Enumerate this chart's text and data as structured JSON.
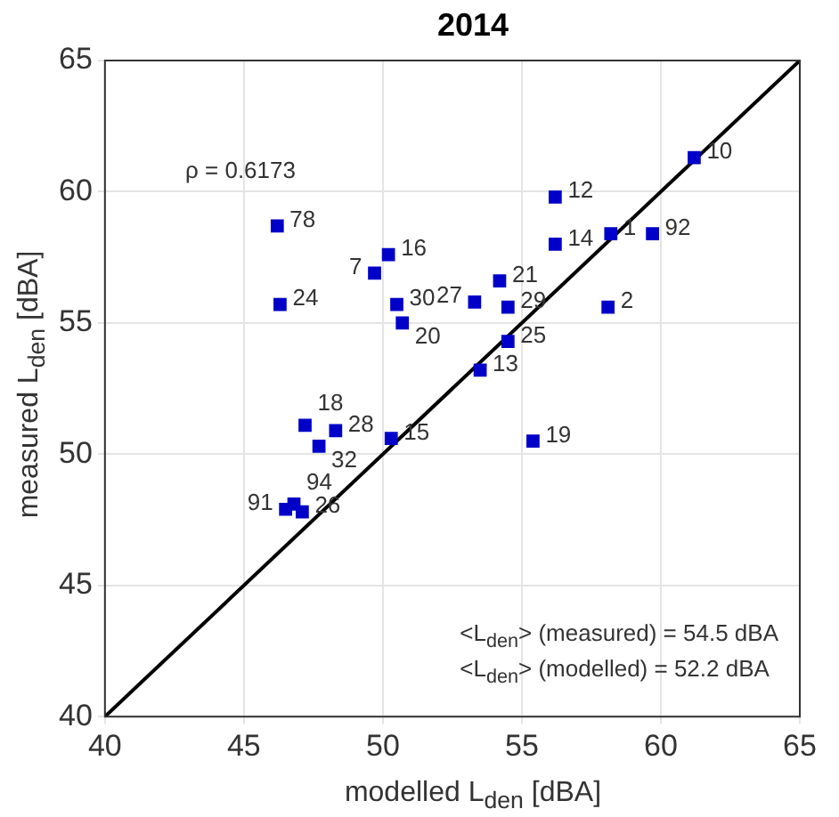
{
  "chart_data": {
    "type": "scatter",
    "title": "2014",
    "xlabel": "modelled L$_{den}$ [dBA]",
    "ylabel": "measured L$_{den}$ [dBA]",
    "xlim": [
      40,
      65
    ],
    "ylim": [
      40,
      65
    ],
    "xticks": [
      40,
      45,
      50,
      55,
      60,
      65
    ],
    "yticks": [
      40,
      45,
      50,
      55,
      60,
      65
    ],
    "grid": true,
    "series": [
      {
        "type": "scatter",
        "color": "#0000c8",
        "marker": "square",
        "x": [
          46.2,
          50.2,
          49.7,
          46.3,
          50.5,
          50.7,
          53.3,
          54.2,
          61.2,
          56.2,
          56.2,
          58.2,
          59.7,
          54.5,
          58.1,
          54.5,
          53.5,
          47.2,
          48.3,
          47.7,
          50.3,
          46.5,
          46.8,
          47.1,
          55.4
        ],
        "values": [
          58.7,
          57.6,
          56.9,
          55.7,
          55.7,
          55.0,
          55.8,
          56.6,
          61.3,
          59.8,
          58.0,
          58.4,
          58.4,
          55.6,
          55.6,
          54.3,
          53.2,
          51.1,
          50.9,
          50.3,
          50.6,
          47.9,
          48.1,
          47.8,
          50.5
        ]
      },
      {
        "type": "line",
        "color": "#000000",
        "marker": "none",
        "x": [
          40,
          65
        ],
        "values": [
          40,
          65
        ]
      }
    ],
    "annotations": [
      "ρ = 0.6173",
      "<L$_{den}$> (measured) = 54.5 dBA",
      "<L$_{den}$> (modelled) = 52.2 dBA",
      {
        "text": "78",
        "x": 46.2,
        "y": 58.7
      },
      {
        "text": "16",
        "x": 50.2,
        "y": 57.6
      },
      {
        "text": "7",
        "x": 49.7,
        "y": 56.9
      },
      {
        "text": "24",
        "x": 46.3,
        "y": 55.7
      },
      {
        "text": "30",
        "x": 50.5,
        "y": 55.7
      },
      {
        "text": "20",
        "x": 50.7,
        "y": 55.0
      },
      {
        "text": "27",
        "x": 53.3,
        "y": 55.8
      },
      {
        "text": "21",
        "x": 54.2,
        "y": 56.6
      },
      {
        "text": "10",
        "x": 61.2,
        "y": 61.3
      },
      {
        "text": "12",
        "x": 56.2,
        "y": 59.8
      },
      {
        "text": "14",
        "x": 56.2,
        "y": 58.0
      },
      {
        "text": "1",
        "x": 58.2,
        "y": 58.4
      },
      {
        "text": "92",
        "x": 59.7,
        "y": 58.4
      },
      {
        "text": "29",
        "x": 54.5,
        "y": 55.6
      },
      {
        "text": "2",
        "x": 58.1,
        "y": 55.6
      },
      {
        "text": "25",
        "x": 54.5,
        "y": 54.3
      },
      {
        "text": "13",
        "x": 53.5,
        "y": 53.2
      },
      {
        "text": "18",
        "x": 47.2,
        "y": 51.1
      },
      {
        "text": "28",
        "x": 48.3,
        "y": 50.9
      },
      {
        "text": "32",
        "x": 47.7,
        "y": 50.3
      },
      {
        "text": "15",
        "x": 50.3,
        "y": 50.6
      },
      {
        "text": "91",
        "x": 46.5,
        "y": 47.9
      },
      {
        "text": "94",
        "x": 46.8,
        "y": 48.1
      },
      {
        "text": "26",
        "x": 47.1,
        "y": 47.8
      },
      {
        "text": "19",
        "x": 55.4,
        "y": 50.5
      }
    ]
  }
}
